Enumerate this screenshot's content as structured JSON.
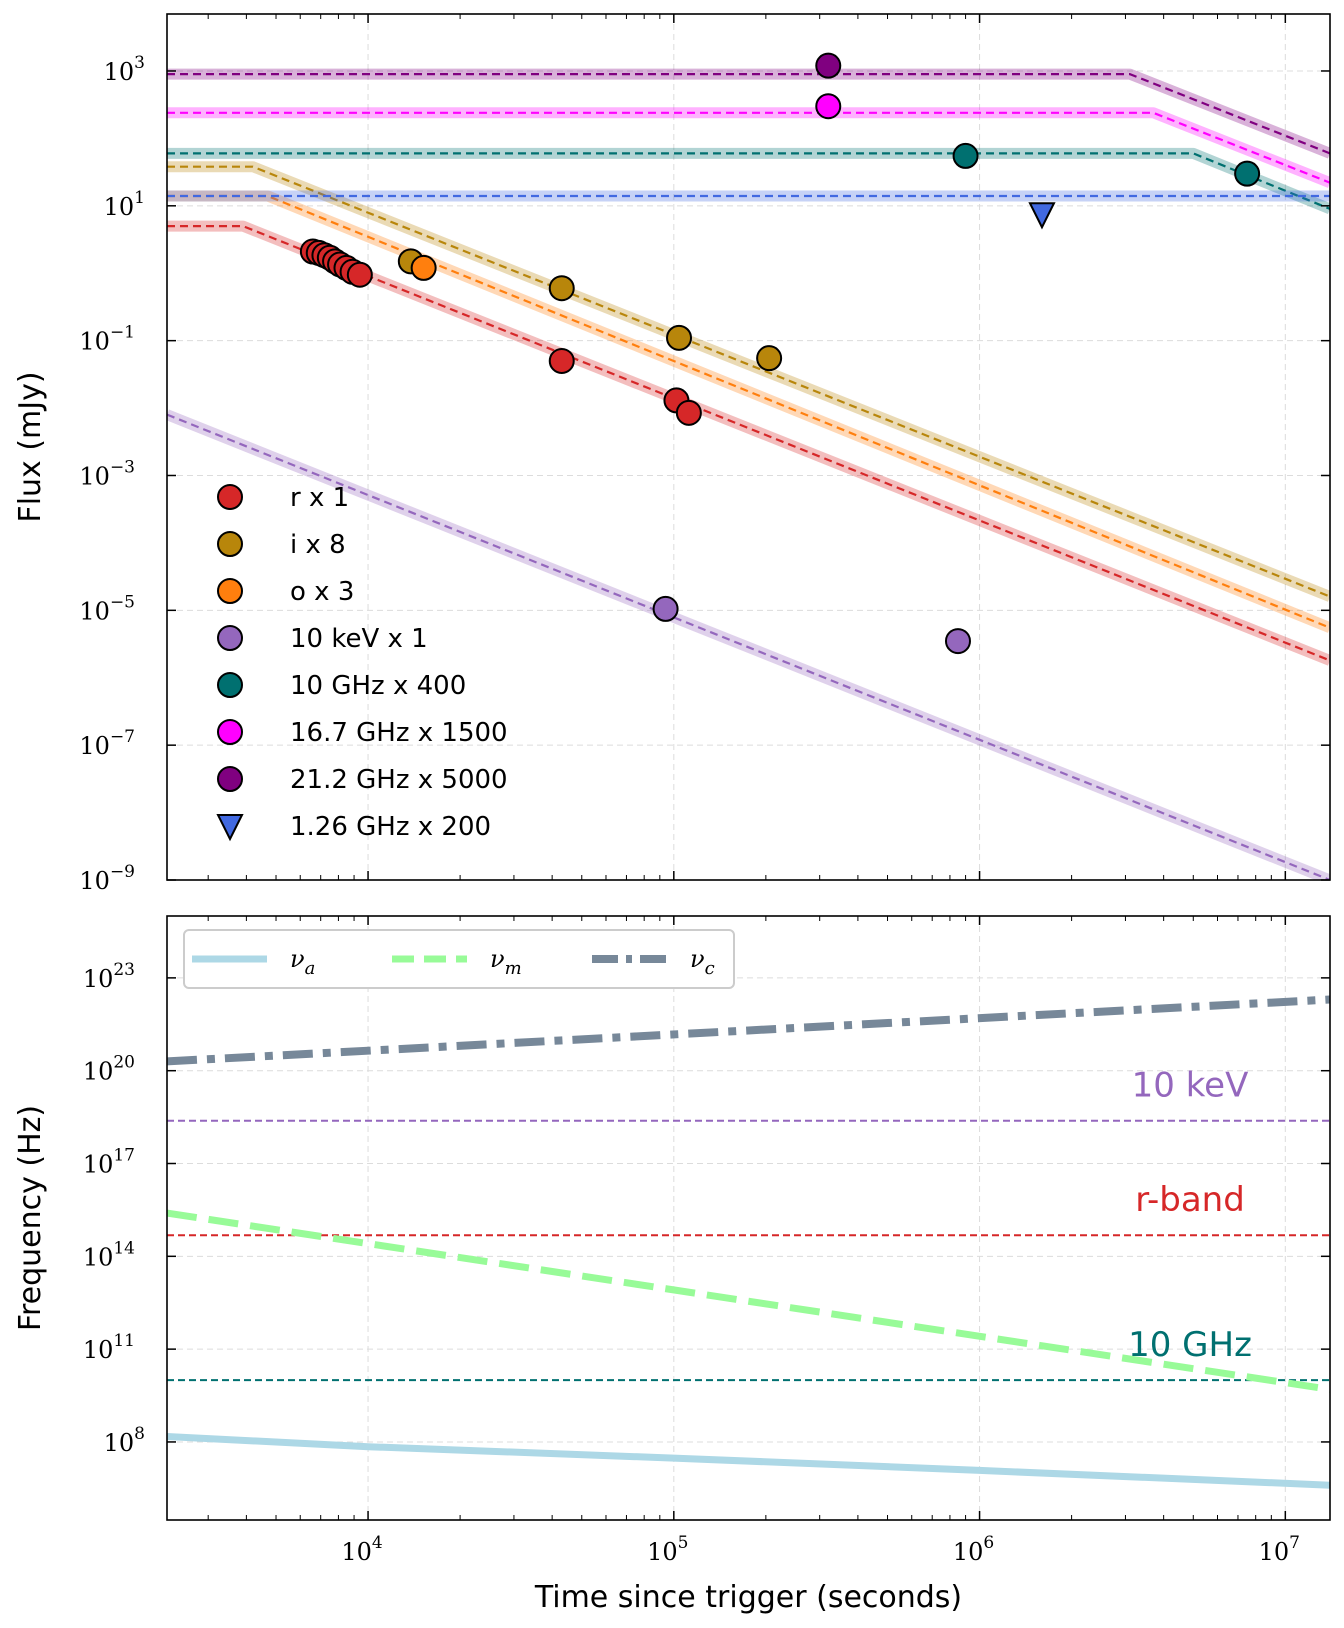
{
  "chart_data": [
    {
      "type": "line+scatter",
      "ylabel": "Flux (mJy)",
      "xscale": "log",
      "yscale": "log",
      "xlim": [
        2200,
        14000000
      ],
      "ylim": [
        1e-09,
        7000
      ],
      "y_ticks": [
        {
          "value": 1000,
          "base": "10",
          "exp": "3"
        },
        {
          "value": 10,
          "base": "10",
          "exp": "1"
        },
        {
          "value": 0.1,
          "base": "10",
          "exp": "−1"
        },
        {
          "value": 0.001,
          "base": "10",
          "exp": "−3"
        },
        {
          "value": 1e-05,
          "base": "10",
          "exp": "−5"
        },
        {
          "value": 1e-07,
          "base": "10",
          "exp": "−7"
        },
        {
          "value": 1e-09,
          "base": "10",
          "exp": "−9"
        }
      ],
      "legend_position": "lower-left",
      "series": [
        {
          "name": "r x 1",
          "color": "#d62728",
          "marker": "circle",
          "points": [
            [
              6600,
              2.1
            ],
            [
              6900,
              2.0
            ],
            [
              7200,
              1.85
            ],
            [
              7500,
              1.7
            ],
            [
              7800,
              1.5
            ],
            [
              8100,
              1.35
            ],
            [
              8500,
              1.2
            ],
            [
              8900,
              1.05
            ],
            [
              9400,
              0.95
            ],
            [
              43000,
              0.05
            ],
            [
              102000,
              0.013
            ],
            [
              112000,
              0.0085
            ]
          ],
          "model": [
            [
              2200,
              5
            ],
            [
              3900,
              5
            ],
            [
              14000000,
              1.8e-06
            ]
          ]
        },
        {
          "name": "i x 8",
          "color": "#b8860b",
          "marker": "circle",
          "points": [
            [
              13800,
              1.5
            ],
            [
              43000,
              0.6
            ],
            [
              104000,
              0.11
            ],
            [
              205000,
              0.055
            ]
          ],
          "model": [
            [
              2200,
              38
            ],
            [
              4200,
              38
            ],
            [
              14000000,
              1.6e-05
            ]
          ]
        },
        {
          "name": "o x 3",
          "color": "#ff7f0e",
          "marker": "circle",
          "points": [
            [
              15200,
              1.2
            ]
          ],
          "model": [
            [
              2200,
              14
            ],
            [
              4700,
              14
            ],
            [
              14000000,
              5.5e-06
            ]
          ]
        },
        {
          "name": "10 keV x 1",
          "color": "#9467bd",
          "marker": "circle",
          "points": [
            [
              94000,
              1.05e-05
            ],
            [
              850000,
              3.5e-06
            ]
          ],
          "model": [
            [
              2200,
              0.008
            ],
            [
              14000000,
              1e-09
            ]
          ]
        },
        {
          "name": "10 GHz x 400",
          "color": "#007070",
          "marker": "circle",
          "points": [
            [
              900000,
              55
            ],
            [
              7500000,
              30
            ]
          ],
          "model": [
            [
              2200,
              60
            ],
            [
              5000000,
              60
            ],
            [
              14000000,
              9
            ]
          ]
        },
        {
          "name": "16.7 GHz x 1500",
          "color": "#ff00ff",
          "marker": "circle",
          "points": [
            [
              320000,
              300
            ]
          ],
          "model": [
            [
              2200,
              240
            ],
            [
              3700000,
              240
            ],
            [
              14000000,
              22
            ]
          ]
        },
        {
          "name": "21.2 GHz x 5000",
          "color": "#800080",
          "marker": "circle",
          "points": [
            [
              320000,
              1200
            ]
          ],
          "model": [
            [
              2200,
              900
            ],
            [
              3100000,
              900
            ],
            [
              14000000,
              60
            ]
          ]
        },
        {
          "name": "1.26 GHz x 200",
          "color": "#4169e1",
          "marker": "triangle-down",
          "points": [
            [
              1600000,
              7.5
            ]
          ],
          "model": [
            [
              2200,
              14
            ],
            [
              14000000,
              14
            ]
          ]
        }
      ]
    },
    {
      "type": "line",
      "xlabel": "Time since trigger (seconds)",
      "ylabel": "Frequency (Hz)",
      "xscale": "log",
      "yscale": "log",
      "xlim": [
        2200,
        14000000
      ],
      "ylim": [
        300000.0,
        1e+25
      ],
      "x_ticks": [
        {
          "value": 10000,
          "base": "10",
          "exp": "4"
        },
        {
          "value": 100000,
          "base": "10",
          "exp": "5"
        },
        {
          "value": 1000000,
          "base": "10",
          "exp": "6"
        },
        {
          "value": 10000000,
          "base": "10",
          "exp": "7"
        }
      ],
      "y_ticks": [
        {
          "value": 1e+23,
          "base": "10",
          "exp": "23"
        },
        {
          "value": 1e+20,
          "base": "10",
          "exp": "20"
        },
        {
          "value": 1e+17,
          "base": "10",
          "exp": "17"
        },
        {
          "value": 100000000000000.0,
          "base": "10",
          "exp": "14"
        },
        {
          "value": 100000000000.0,
          "base": "10",
          "exp": "11"
        },
        {
          "value": 100000000.0,
          "base": "10",
          "exp": "8"
        }
      ],
      "legend_position": "top-left",
      "series": [
        {
          "name": "ν",
          "sub": "a",
          "color": "#add8e6",
          "style": "solid",
          "points": [
            [
              2200,
              150000000.0
            ],
            [
              10000,
              70000000.0
            ],
            [
              100000,
              30000000.0
            ],
            [
              1000000,
              12000000.0
            ],
            [
              14000000,
              4000000.0
            ]
          ]
        },
        {
          "name": "ν",
          "sub": "m",
          "color": "#98fb98",
          "style": "dashed",
          "points": [
            [
              2200,
              2500000000000000.0
            ],
            [
              14000000,
              5000000000.0
            ]
          ]
        },
        {
          "name": "ν",
          "sub": "c",
          "color": "#778899",
          "style": "dashdot",
          "points": [
            [
              2200,
              2e+20
            ],
            [
              14000000,
              2e+22
            ]
          ]
        }
      ],
      "reference_lines": [
        {
          "label": "10 keV",
          "value": 2.42e+18,
          "color": "#9467bd"
        },
        {
          "label": "r-band",
          "value": 480000000000000.0,
          "color": "#d62728"
        },
        {
          "label": "10 GHz",
          "value": 10000000000.0,
          "color": "#007070"
        }
      ]
    }
  ]
}
